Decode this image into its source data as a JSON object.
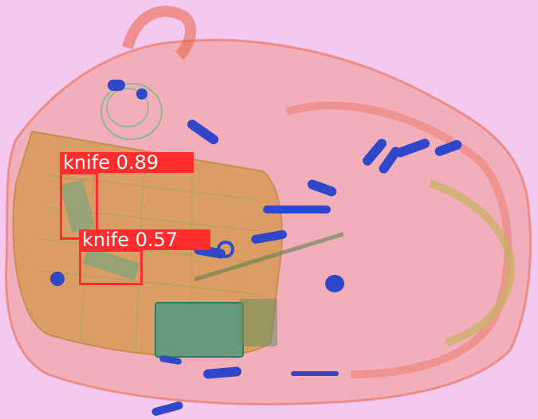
{
  "image": {
    "background_color": "#f3c9ef",
    "bag_color": "#f07a5a",
    "metal_color": "#2f47c8",
    "circuit_color": "#3f9a86",
    "box_color": "#ff2d2d",
    "label_text_color": "#ffffff"
  },
  "detections": [
    {
      "class": "knife",
      "score": "0.89",
      "label": "knife 0.89"
    },
    {
      "class": "knife",
      "score": "0.57",
      "label": "knife 0.57"
    }
  ]
}
